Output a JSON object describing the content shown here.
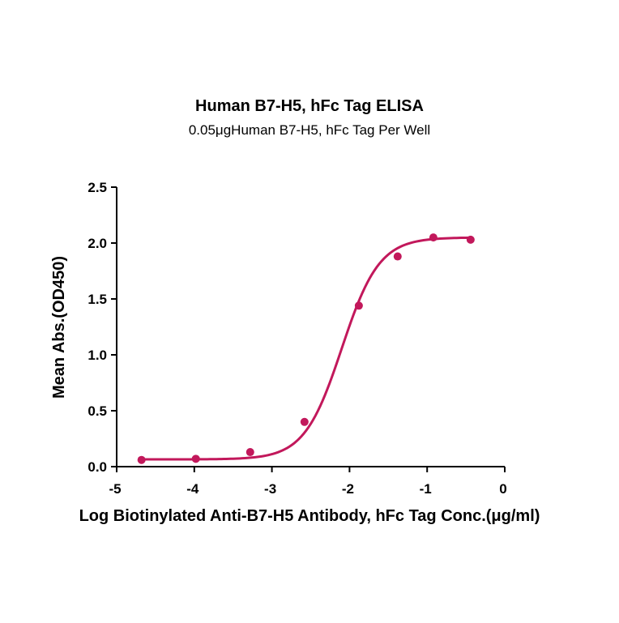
{
  "chart_data": {
    "type": "scatter",
    "title": "Human B7-H5, hFc Tag ELISA",
    "subtitle": "0.05μgHuman B7-H5, hFc Tag Per Well",
    "xlabel": "Log Biotinylated Anti-B7-H5 Antibody, hFc Tag Conc.(μg/ml)",
    "ylabel": "Mean Abs.(OD450)",
    "xlim": [
      -5,
      0
    ],
    "ylim": [
      0,
      2.5
    ],
    "x_ticks": [
      -5,
      -4,
      -3,
      -2,
      -1,
      0
    ],
    "x_tick_labels": [
      "-5",
      "-4",
      "-3",
      "-2",
      "-1",
      "0"
    ],
    "y_ticks": [
      0,
      0.5,
      1,
      1.5,
      2,
      2.5
    ],
    "y_tick_labels": [
      "0.0",
      "0.5",
      "1.0",
      "1.5",
      "2.0",
      "2.5"
    ],
    "grid": false,
    "color": "#c2185b",
    "series": [
      {
        "x": [
          -4.68,
          -3.98,
          -3.28,
          -2.58,
          -1.88,
          -1.38,
          -0.92,
          -0.44
        ],
        "y": [
          0.06,
          0.07,
          0.13,
          0.4,
          1.44,
          1.88,
          2.05,
          2.03
        ],
        "fit": {
          "model": "4PL",
          "bottom": 0.065,
          "top": 2.05,
          "logEC50": -2.1,
          "hill": 1.8
        }
      }
    ]
  }
}
